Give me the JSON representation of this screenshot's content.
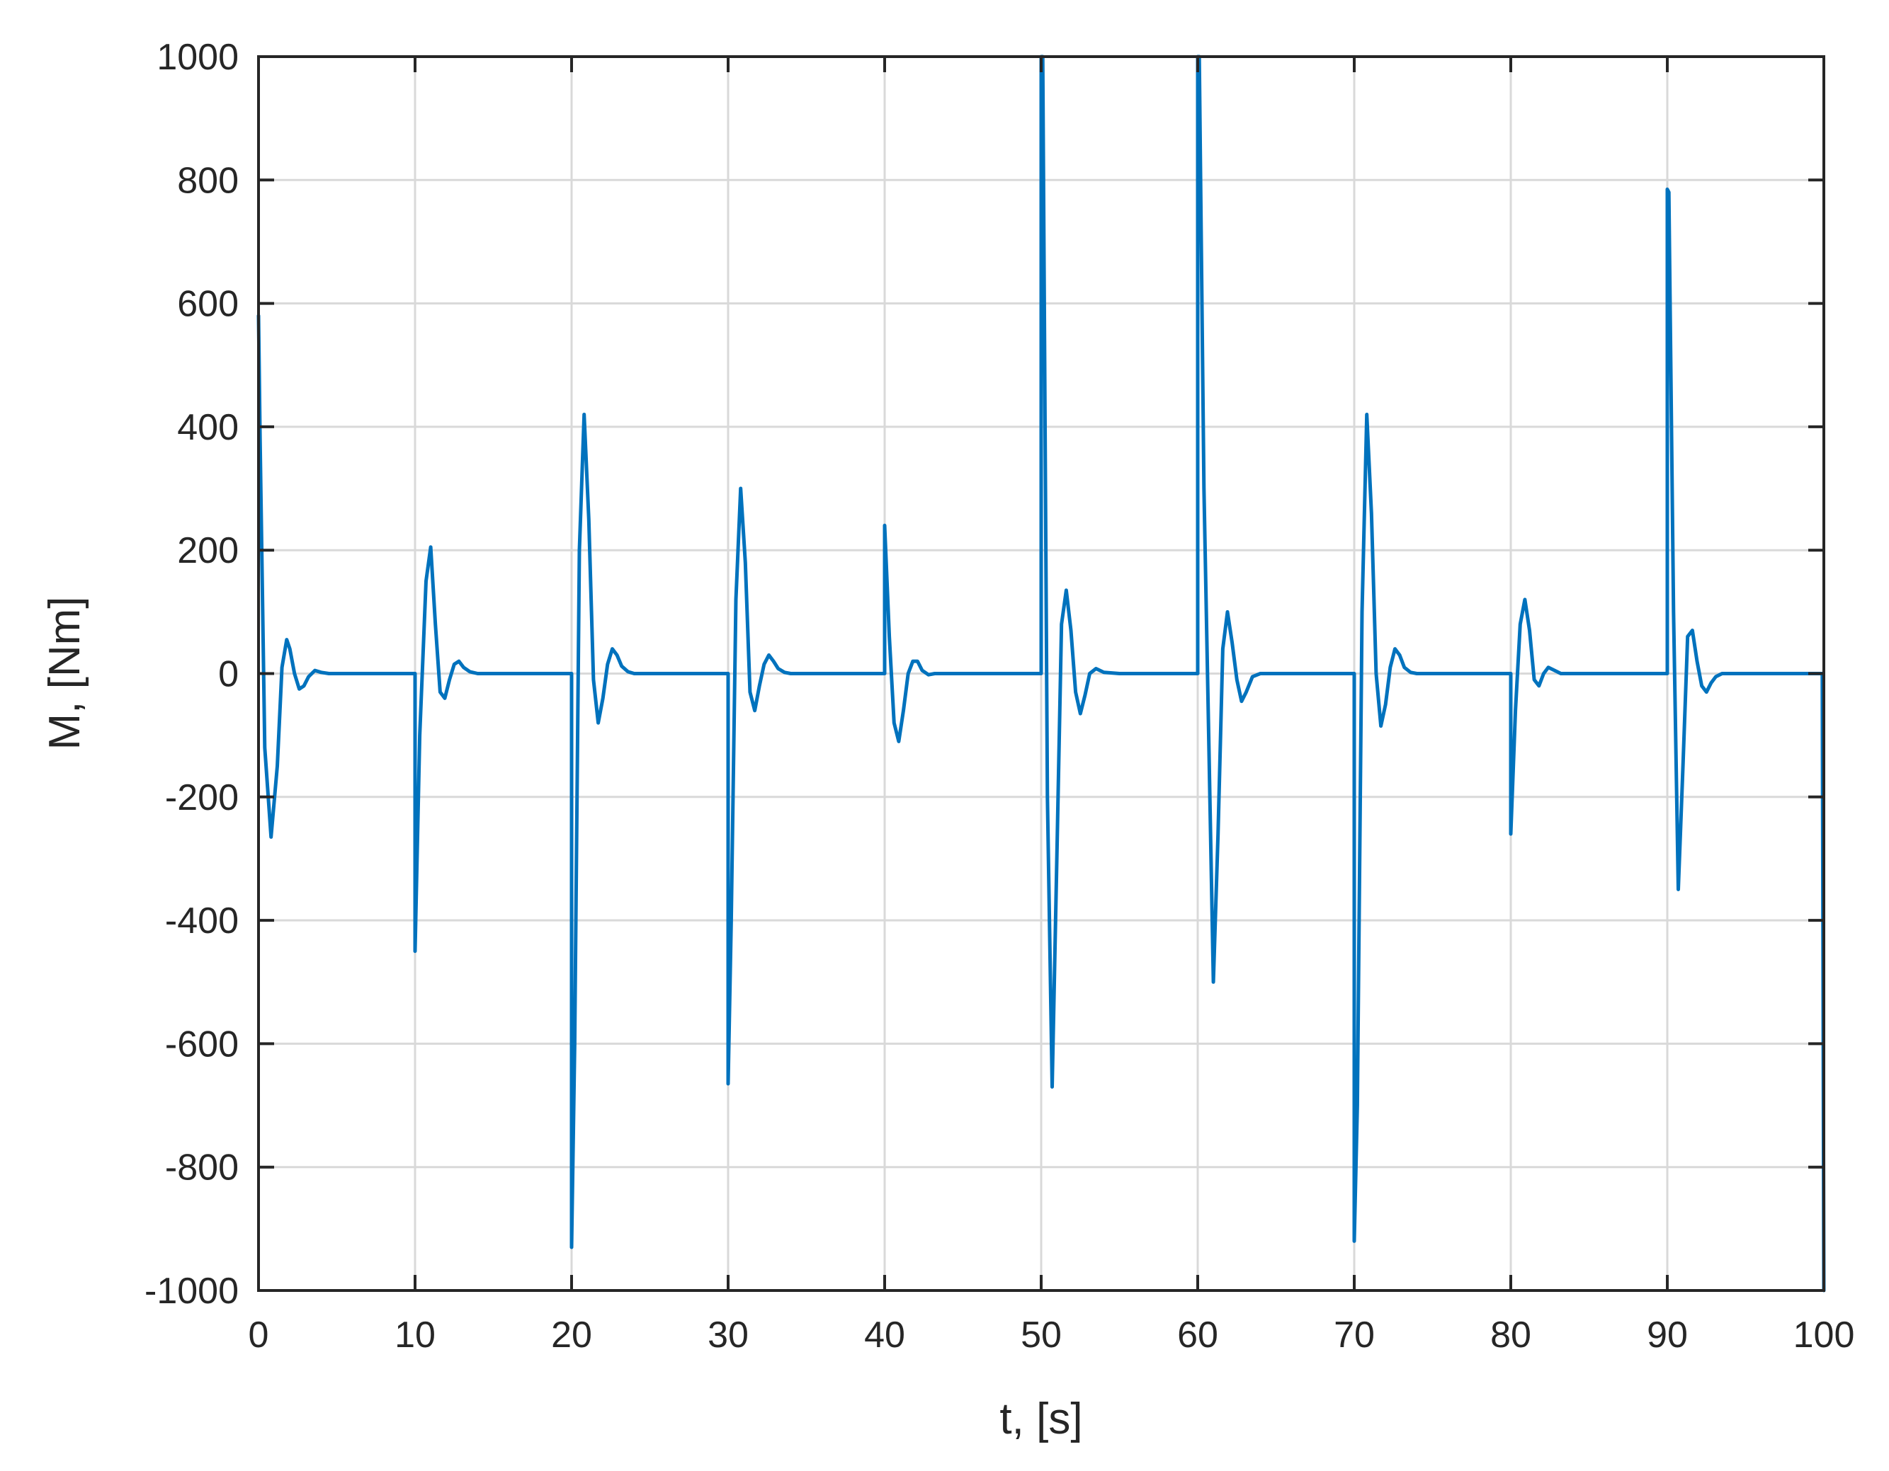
{
  "chart_data": {
    "type": "line",
    "title": "",
    "xlabel": "t, [s]",
    "ylabel": "M, [Nm]",
    "xlim": [
      0,
      100
    ],
    "ylim": [
      -1000,
      1000
    ],
    "xticks": [
      0,
      10,
      20,
      30,
      40,
      50,
      60,
      70,
      80,
      90,
      100
    ],
    "yticks": [
      -1000,
      -800,
      -600,
      -400,
      -200,
      0,
      200,
      400,
      600,
      800,
      1000
    ],
    "xtick_labels": [
      "0",
      "10",
      "20",
      "30",
      "40",
      "50",
      "60",
      "70",
      "80",
      "90",
      "100"
    ],
    "ytick_labels": [
      "-1000",
      "-800",
      "-600",
      "-400",
      "-200",
      "0",
      "200",
      "400",
      "600",
      "800",
      "1000"
    ],
    "grid": true,
    "legend": "none",
    "line_color": "#0072BD",
    "grid_color": "#d9d9d9",
    "series": [
      {
        "x": [
          0.0,
          0.1,
          0.4,
          0.8,
          1.2,
          1.5,
          1.8,
          2.0,
          2.3,
          2.6,
          2.9,
          3.2,
          3.6,
          4.0,
          4.5,
          5.0,
          10.0,
          10.0,
          10.3,
          10.7,
          11.0,
          11.3,
          11.6,
          11.9,
          12.2,
          12.5,
          12.8,
          13.1,
          13.5,
          14.0,
          15.0,
          20.0,
          20.0,
          20.2,
          20.5,
          20.8,
          21.1,
          21.4,
          21.7,
          22.0,
          22.3,
          22.6,
          22.9,
          23.2,
          23.6,
          24.0,
          25.0,
          30.0,
          30.0,
          30.2,
          30.5,
          30.8,
          31.1,
          31.4,
          31.7,
          32.0,
          32.3,
          32.6,
          32.9,
          33.2,
          33.6,
          34.0,
          35.0,
          40.0,
          40.0,
          40.3,
          40.6,
          40.9,
          41.2,
          41.5,
          41.8,
          42.1,
          42.4,
          42.8,
          43.2,
          44.0,
          50.0,
          50.0,
          50.1,
          50.4,
          50.7,
          51.0,
          51.3,
          51.6,
          51.9,
          52.2,
          52.5,
          52.8,
          53.1,
          53.5,
          54.0,
          55.0,
          60.0,
          60.0,
          60.1,
          60.4,
          60.7,
          61.0,
          61.3,
          61.6,
          61.9,
          62.2,
          62.5,
          62.8,
          63.1,
          63.5,
          64.0,
          65.0,
          70.0,
          70.0,
          70.2,
          70.5,
          70.8,
          71.1,
          71.4,
          71.7,
          72.0,
          72.3,
          72.6,
          72.9,
          73.2,
          73.6,
          74.0,
          75.0,
          80.0,
          80.0,
          80.3,
          80.6,
          80.9,
          81.2,
          81.5,
          81.8,
          82.1,
          82.4,
          82.8,
          83.2,
          84.0,
          90.0,
          90.0,
          90.1,
          90.4,
          90.7,
          91.0,
          91.3,
          91.6,
          91.9,
          92.2,
          92.5,
          92.8,
          93.1,
          93.5,
          94.0,
          95.0,
          99.9,
          100.0
        ],
        "y": [
          580,
          380,
          -120,
          -265,
          -150,
          10,
          55,
          40,
          0,
          -25,
          -20,
          -5,
          5,
          2,
          0,
          0,
          0,
          -450,
          -100,
          150,
          205,
          80,
          -30,
          -40,
          -10,
          15,
          20,
          10,
          3,
          0,
          0,
          0,
          -930,
          -600,
          200,
          420,
          250,
          -10,
          -80,
          -40,
          15,
          40,
          30,
          12,
          3,
          0,
          0,
          0,
          -665,
          -400,
          120,
          300,
          180,
          -30,
          -60,
          -20,
          15,
          30,
          20,
          8,
          2,
          0,
          0,
          0,
          240,
          60,
          -80,
          -110,
          -60,
          0,
          20,
          20,
          5,
          -2,
          0,
          0,
          0,
          1000,
          1000,
          -200,
          -670,
          -300,
          80,
          135,
          70,
          -30,
          -65,
          -35,
          0,
          8,
          2,
          0,
          0,
          1000,
          1000,
          300,
          -100,
          -500,
          -260,
          40,
          100,
          50,
          -10,
          -45,
          -30,
          -5,
          0,
          0,
          0,
          -920,
          -700,
          100,
          420,
          260,
          0,
          -85,
          -50,
          10,
          40,
          30,
          10,
          2,
          0,
          0,
          0,
          -260,
          -60,
          80,
          120,
          70,
          -10,
          -20,
          0,
          10,
          5,
          0,
          0,
          0,
          785,
          780,
          100,
          -350,
          -150,
          60,
          70,
          20,
          -20,
          -30,
          -15,
          -5,
          0,
          0,
          0,
          0,
          -1000
        ]
      }
    ]
  }
}
